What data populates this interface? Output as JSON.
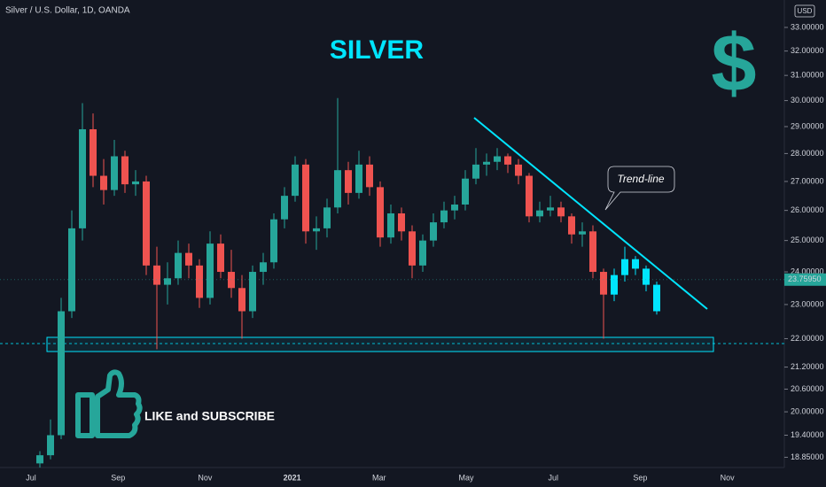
{
  "chart_data": {
    "type": "candlestick",
    "header": "Silver / U.S. Dollar, 1D, OANDA",
    "title": "SILVER",
    "icon_text": "$",
    "currency": "USD",
    "annotations": [
      "Trend-line",
      "LIKE and SUBSCRIBE"
    ],
    "log_scale": true,
    "ylim": [
      18.6,
      34.2
    ],
    "yticks": [
      {
        "value": 33,
        "label": "33.00000"
      },
      {
        "value": 32,
        "label": "32.00000"
      },
      {
        "value": 31,
        "label": "31.00000"
      },
      {
        "value": 30,
        "label": "30.00000"
      },
      {
        "value": 29,
        "label": "29.00000"
      },
      {
        "value": 28,
        "label": "28.00000"
      },
      {
        "value": 27,
        "label": "27.00000"
      },
      {
        "value": 26,
        "label": "26.00000"
      },
      {
        "value": 25,
        "label": "25.00000"
      },
      {
        "value": 24,
        "label": "24.00000"
      },
      {
        "value": 23,
        "label": "23.00000"
      },
      {
        "value": 22,
        "label": "22.00000"
      },
      {
        "value": 21.2,
        "label": "21.20000"
      },
      {
        "value": 20.6,
        "label": "20.60000"
      },
      {
        "value": 20,
        "label": "20.00000"
      },
      {
        "value": 19.4,
        "label": "19.40000"
      },
      {
        "value": 18.85,
        "label": "18.85000"
      }
    ],
    "time_labels": [
      "Jul",
      "Sep",
      "Nov",
      "2021",
      "Mar",
      "May",
      "Jul",
      "Sep",
      "Nov"
    ],
    "last_price": {
      "value": 23.7595,
      "label": "23.75950"
    },
    "series": [
      {
        "color_up": "#26a69a",
        "color_down": "#ef5350",
        "candles": [
          [
            18.7,
            19.0,
            18.6,
            18.9
          ],
          [
            18.9,
            19.8,
            18.8,
            19.4
          ],
          [
            19.4,
            23.2,
            19.3,
            22.8
          ],
          [
            22.8,
            26.0,
            22.6,
            25.4
          ],
          [
            25.4,
            29.9,
            25.0,
            28.9
          ],
          [
            28.9,
            29.5,
            26.8,
            27.2
          ],
          [
            27.2,
            27.8,
            26.2,
            26.7
          ],
          [
            26.7,
            28.5,
            26.5,
            27.9
          ],
          [
            27.9,
            28.1,
            26.6,
            26.9
          ],
          [
            26.9,
            27.4,
            26.5,
            27.0
          ],
          [
            27.0,
            27.2,
            23.9,
            24.2
          ],
          [
            24.2,
            24.8,
            21.7,
            23.6
          ],
          [
            23.6,
            24.3,
            23.0,
            23.8
          ],
          [
            23.8,
            25.0,
            23.6,
            24.6
          ],
          [
            24.6,
            24.9,
            23.8,
            24.2
          ],
          [
            24.2,
            24.4,
            22.9,
            23.2
          ],
          [
            23.2,
            25.3,
            23.0,
            24.9
          ],
          [
            24.9,
            25.2,
            23.8,
            24.0
          ],
          [
            24.0,
            24.7,
            23.2,
            23.5
          ],
          [
            23.5,
            23.9,
            22.0,
            22.8
          ],
          [
            22.8,
            24.2,
            22.6,
            24.0
          ],
          [
            24.0,
            24.6,
            23.6,
            24.3
          ],
          [
            24.3,
            25.9,
            24.1,
            25.7
          ],
          [
            25.7,
            26.8,
            25.4,
            26.5
          ],
          [
            26.5,
            27.9,
            26.3,
            27.6
          ],
          [
            27.6,
            27.8,
            24.9,
            25.3
          ],
          [
            25.3,
            25.8,
            24.7,
            25.4
          ],
          [
            25.4,
            26.4,
            25.1,
            26.1
          ],
          [
            26.1,
            30.1,
            25.9,
            27.4
          ],
          [
            27.4,
            27.7,
            26.2,
            26.6
          ],
          [
            26.6,
            28.1,
            26.4,
            27.6
          ],
          [
            27.6,
            27.9,
            26.5,
            26.8
          ],
          [
            26.8,
            27.0,
            24.8,
            25.1
          ],
          [
            25.1,
            26.2,
            24.9,
            25.9
          ],
          [
            25.9,
            26.1,
            25.0,
            25.3
          ],
          [
            25.3,
            25.5,
            23.8,
            24.2
          ],
          [
            24.2,
            25.2,
            24.0,
            25.0
          ],
          [
            25.0,
            25.9,
            24.8,
            25.6
          ],
          [
            25.6,
            26.3,
            25.4,
            26.0
          ],
          [
            26.0,
            26.5,
            25.7,
            26.2
          ],
          [
            26.2,
            27.4,
            26.0,
            27.1
          ],
          [
            27.1,
            28.2,
            26.9,
            27.6
          ],
          [
            27.6,
            28.0,
            27.2,
            27.7
          ],
          [
            27.7,
            28.2,
            27.4,
            27.9
          ],
          [
            27.9,
            28.0,
            27.3,
            27.6
          ],
          [
            27.6,
            27.8,
            26.9,
            27.2
          ],
          [
            27.2,
            27.3,
            25.6,
            25.8
          ],
          [
            25.8,
            26.3,
            25.6,
            26.0
          ],
          [
            26.0,
            26.5,
            25.8,
            26.1
          ],
          [
            26.1,
            26.3,
            25.6,
            25.8
          ],
          [
            25.8,
            25.9,
            24.9,
            25.2
          ],
          [
            25.2,
            25.6,
            24.8,
            25.3
          ],
          [
            25.3,
            25.5,
            23.8,
            24.0
          ],
          [
            24.0,
            24.1,
            22.0,
            23.3
          ]
        ]
      },
      {
        "color": "#00e5ff",
        "candles": [
          [
            23.3,
            24.1,
            23.1,
            23.9
          ],
          [
            23.9,
            24.8,
            23.7,
            24.4
          ],
          [
            24.4,
            24.5,
            23.9,
            24.1
          ],
          [
            24.1,
            24.2,
            23.4,
            23.6
          ],
          [
            23.6,
            23.7,
            22.7,
            22.8
          ]
        ]
      }
    ]
  }
}
